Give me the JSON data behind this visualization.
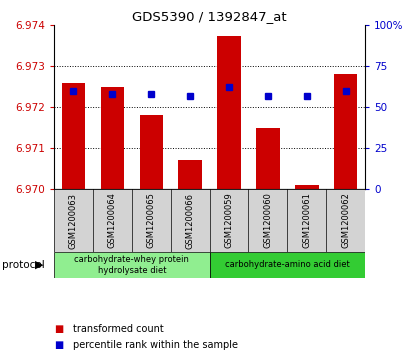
{
  "title": "GDS5390 / 1392847_at",
  "samples": [
    "GSM1200063",
    "GSM1200064",
    "GSM1200065",
    "GSM1200066",
    "GSM1200059",
    "GSM1200060",
    "GSM1200061",
    "GSM1200062"
  ],
  "red_values": [
    6.9726,
    6.9725,
    6.9718,
    6.9707,
    6.97375,
    6.9715,
    6.9701,
    6.9728
  ],
  "blue_values": [
    60,
    58,
    58,
    57,
    62,
    57,
    57,
    60
  ],
  "ylim_left": [
    6.97,
    6.974
  ],
  "ylim_right": [
    0,
    100
  ],
  "yticks_left": [
    6.97,
    6.971,
    6.972,
    6.973,
    6.974
  ],
  "yticks_right": [
    0,
    25,
    50,
    75,
    100
  ],
  "ytick_labels_right": [
    "0",
    "25",
    "50",
    "75",
    "100%"
  ],
  "group1_label": "carbohydrate-whey protein\nhydrolysate diet",
  "group2_label": "carbohydrate-amino acid diet",
  "group1_color": "#90EE90",
  "group2_color": "#33CC33",
  "bar_color": "#CC0000",
  "dot_color": "#0000CC",
  "base_value": 6.97,
  "protocol_label": "protocol",
  "legend_red": "transformed count",
  "legend_blue": "percentile rank within the sample",
  "bar_width": 0.6,
  "tick_color_left": "#CC0000",
  "tick_color_right": "#0000CC",
  "bg_gray": "#D3D3D3",
  "bg_white": "#FFFFFF"
}
